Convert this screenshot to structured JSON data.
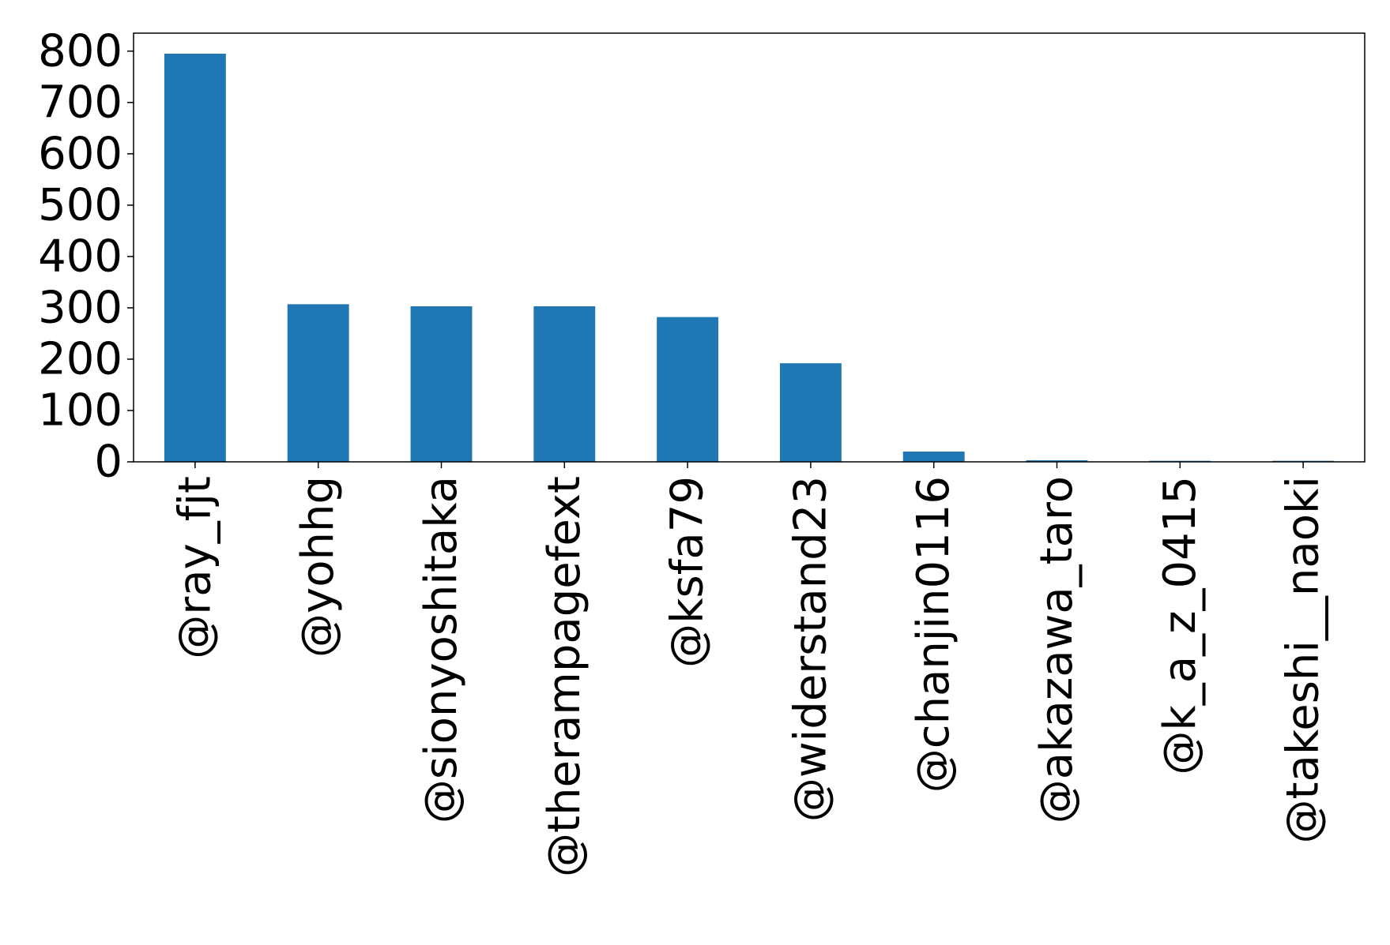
{
  "chart_data": {
    "type": "bar",
    "title": "",
    "xlabel": "",
    "ylabel": "",
    "categories": [
      "@ray_fjt",
      "@yohhg",
      "@sionyoshitaka",
      "@therampagefext",
      "@ksfa79",
      "@widerstand23",
      "@chanjin0116",
      "@akazawa_taro",
      "@k_a_z_0415",
      "@takeshi__naoki"
    ],
    "values": [
      795,
      307,
      303,
      303,
      282,
      192,
      20,
      3,
      2,
      2
    ],
    "ylim": [
      0,
      835
    ],
    "yticks": [
      "0",
      "100",
      "200",
      "300",
      "400",
      "500",
      "600",
      "700",
      "800"
    ],
    "bar_color": "#1f77b4",
    "grid": false,
    "legend": "none"
  }
}
